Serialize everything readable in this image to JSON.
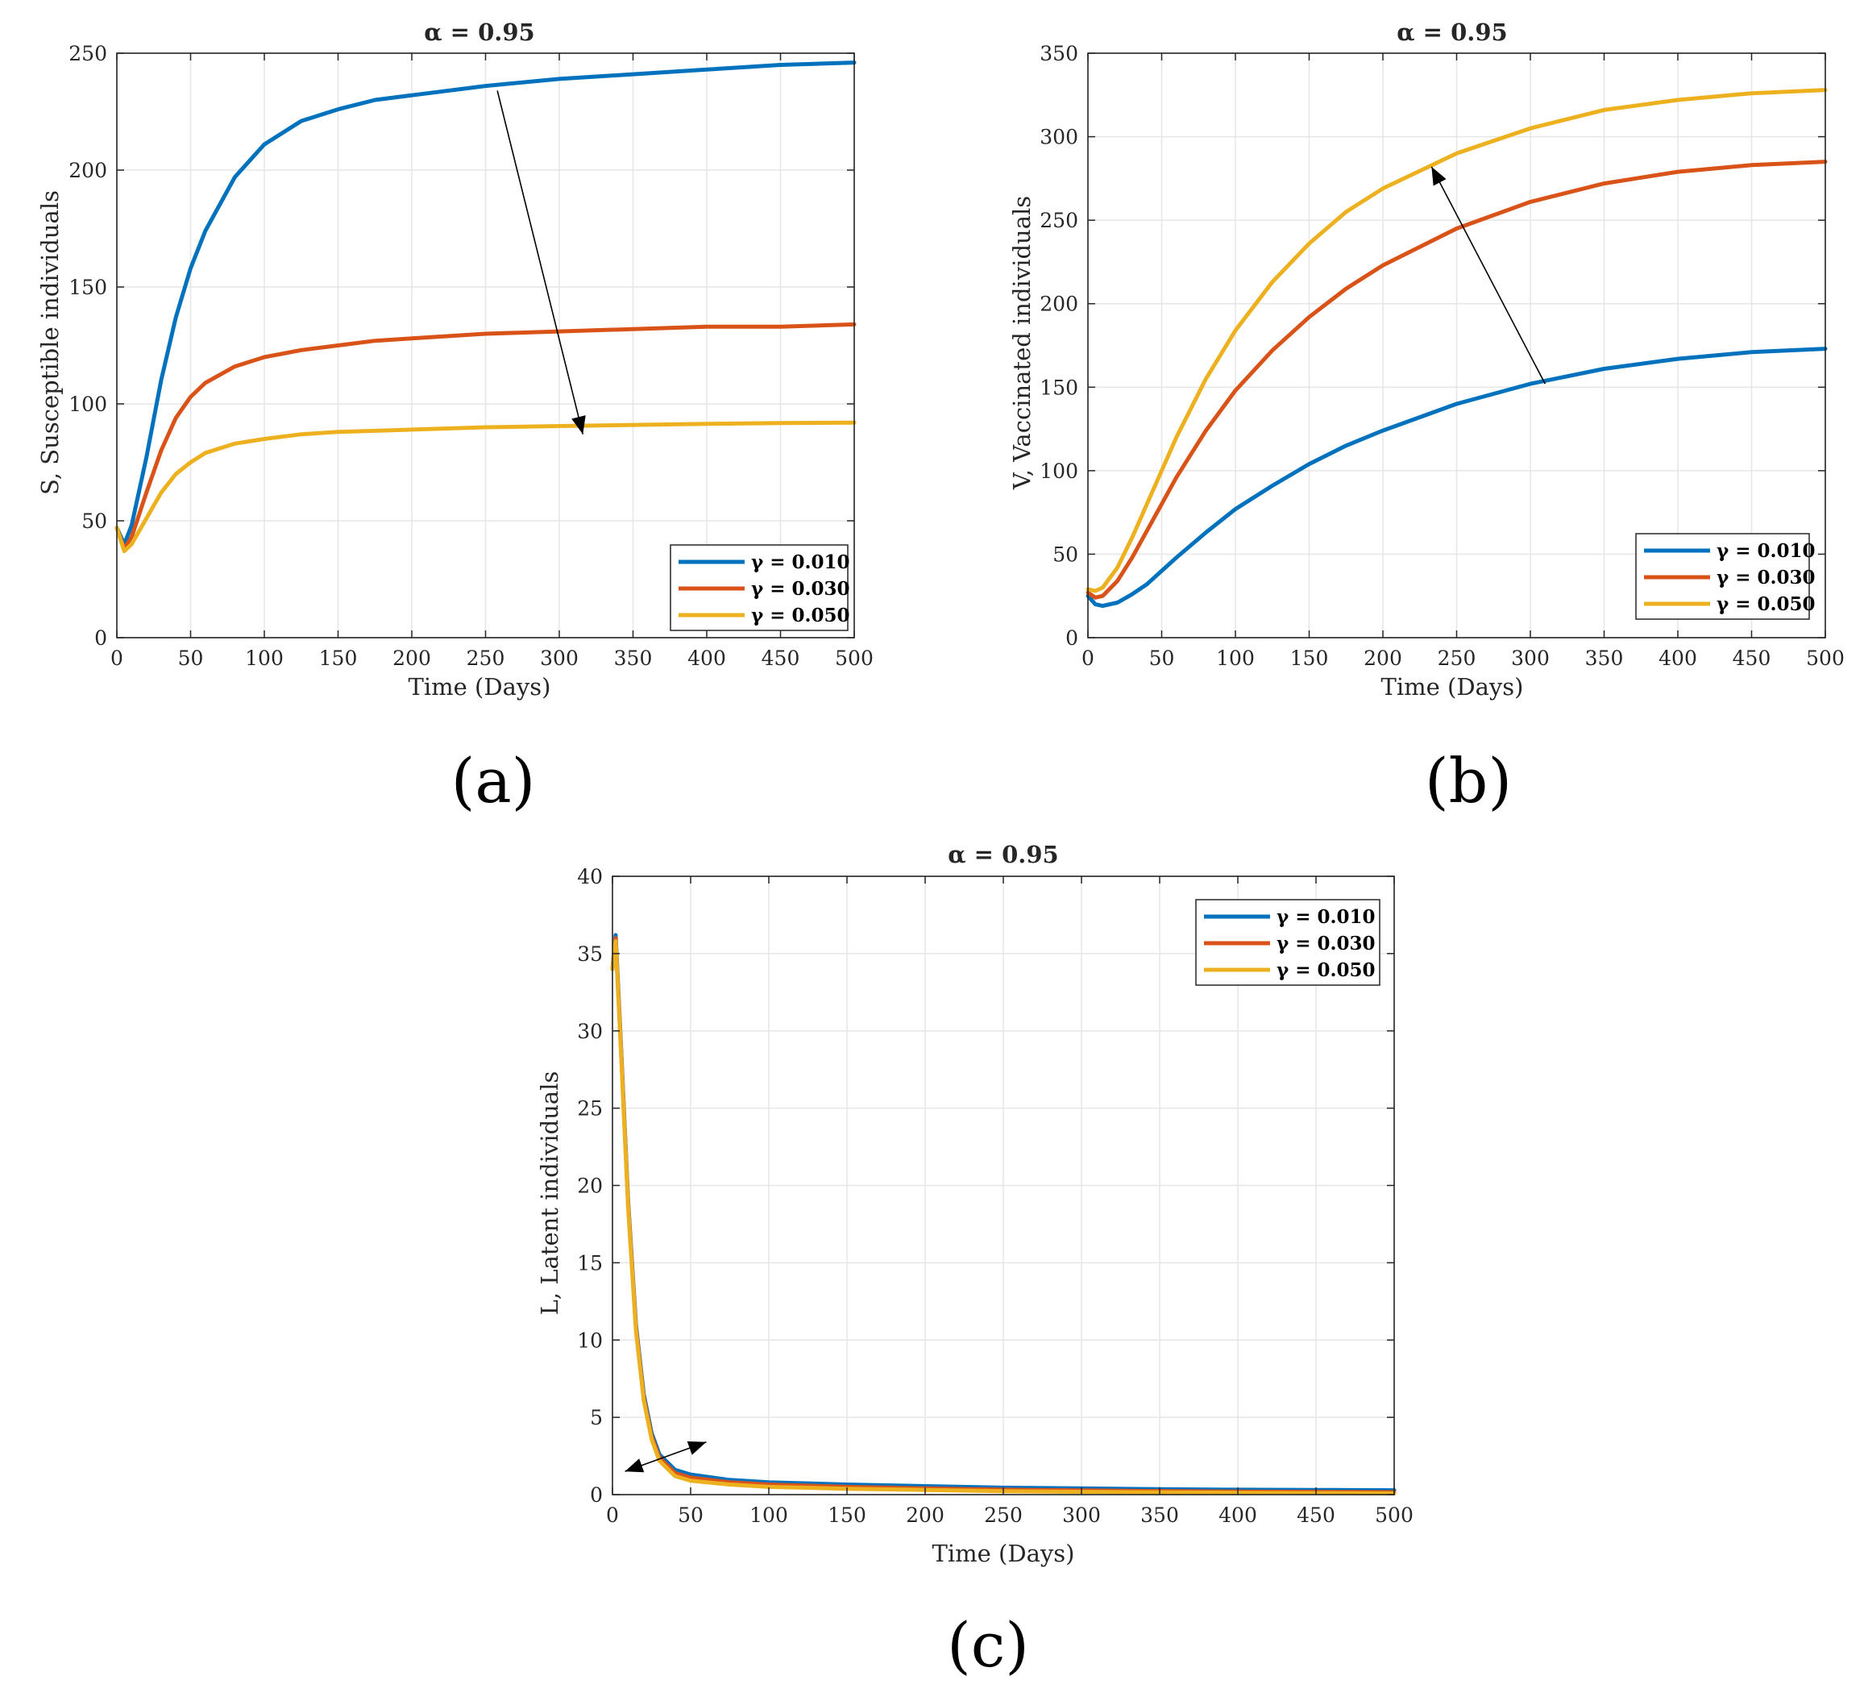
{
  "figure": {
    "panel_labels": [
      "(a)",
      "(b)",
      "(c)"
    ]
  },
  "colors": {
    "series": [
      "#0072BD",
      "#D95319",
      "#EDB120"
    ],
    "axis": "#262626",
    "grid": "#e6e6e6"
  },
  "chart_data": [
    {
      "type": "line",
      "title": "α = 0.95",
      "xlabel": "Time (Days)",
      "ylabel": "S, Susceptible individuals",
      "xlim": [
        0,
        500
      ],
      "ylim": [
        0,
        250
      ],
      "xticks": [
        0,
        50,
        100,
        150,
        200,
        250,
        300,
        350,
        400,
        450,
        500
      ],
      "yticks": [
        0,
        50,
        100,
        150,
        200,
        250
      ],
      "grid": true,
      "legend_position": "bottom-right",
      "annotation": "arrow pointing from γ = 0.010 toward γ = 0.050",
      "x": [
        0,
        5,
        10,
        20,
        30,
        40,
        50,
        60,
        80,
        100,
        125,
        150,
        175,
        200,
        250,
        300,
        350,
        400,
        450,
        500
      ],
      "series": [
        {
          "name": "γ = 0.010",
          "values": [
            47,
            40,
            48,
            77,
            110,
            137,
            158,
            174,
            197,
            211,
            221,
            226,
            230,
            232,
            236,
            239,
            241,
            243,
            245,
            246
          ]
        },
        {
          "name": "γ = 0.030",
          "values": [
            47,
            38,
            43,
            62,
            80,
            94,
            103,
            109,
            116,
            120,
            123,
            125,
            127,
            128,
            130,
            131,
            132,
            133,
            133,
            134
          ]
        },
        {
          "name": "γ = 0.050",
          "values": [
            47,
            37,
            40,
            51,
            62,
            70,
            75,
            79,
            83,
            85,
            87,
            88,
            88.5,
            89,
            90,
            90.5,
            91,
            91.5,
            91.8,
            92
          ]
        }
      ]
    },
    {
      "type": "line",
      "title": "α = 0.95",
      "xlabel": "Time (Days)",
      "ylabel": "V, Vaccinated individuals",
      "xlim": [
        0,
        500
      ],
      "ylim": [
        0,
        350
      ],
      "xticks": [
        0,
        50,
        100,
        150,
        200,
        250,
        300,
        350,
        400,
        450,
        500
      ],
      "yticks": [
        0,
        50,
        100,
        150,
        200,
        250,
        300,
        350
      ],
      "grid": true,
      "legend_position": "bottom-right",
      "annotation": "arrow pointing from γ = 0.010 toward γ = 0.050",
      "x": [
        0,
        5,
        10,
        20,
        30,
        40,
        50,
        60,
        80,
        100,
        125,
        150,
        175,
        200,
        250,
        300,
        350,
        400,
        450,
        500
      ],
      "series": [
        {
          "name": "γ = 0.010",
          "values": [
            25,
            20,
            19,
            21,
            26,
            32,
            40,
            48,
            63,
            77,
            91,
            104,
            115,
            124,
            140,
            152,
            161,
            167,
            171,
            173
          ]
        },
        {
          "name": "γ = 0.030",
          "values": [
            27,
            24,
            25,
            34,
            48,
            64,
            80,
            96,
            124,
            148,
            172,
            192,
            209,
            223,
            245,
            261,
            272,
            279,
            283,
            285
          ]
        },
        {
          "name": "γ = 0.050",
          "values": [
            29,
            28,
            30,
            42,
            60,
            80,
            100,
            120,
            155,
            184,
            213,
            236,
            255,
            269,
            290,
            305,
            316,
            322,
            326,
            328
          ]
        }
      ]
    },
    {
      "type": "line",
      "title": "α = 0.95",
      "xlabel": "Time (Days)",
      "ylabel": "L, Latent individuals",
      "xlim": [
        0,
        500
      ],
      "ylim": [
        0,
        40
      ],
      "xticks": [
        0,
        50,
        100,
        150,
        200,
        250,
        300,
        350,
        400,
        450,
        500
      ],
      "yticks": [
        0,
        5,
        10,
        15,
        20,
        25,
        30,
        35,
        40
      ],
      "grid": true,
      "legend_position": "top-right",
      "annotation": "double-headed arrow near the curve knee",
      "x": [
        0,
        2,
        5,
        10,
        15,
        20,
        25,
        30,
        40,
        50,
        75,
        100,
        150,
        200,
        250,
        300,
        350,
        400,
        450,
        500
      ],
      "series": [
        {
          "name": "γ = 0.010",
          "values": [
            34,
            36.2,
            30,
            19,
            11,
            6.5,
            4,
            2.6,
            1.6,
            1.3,
            0.95,
            0.8,
            0.65,
            0.55,
            0.45,
            0.4,
            0.35,
            0.32,
            0.3,
            0.28
          ]
        },
        {
          "name": "γ = 0.030",
          "values": [
            34,
            36,
            29.8,
            18.8,
            10.8,
            6.3,
            3.8,
            2.4,
            1.4,
            1.1,
            0.8,
            0.65,
            0.5,
            0.4,
            0.32,
            0.27,
            0.23,
            0.2,
            0.18,
            0.16
          ]
        },
        {
          "name": "γ = 0.050",
          "values": [
            34,
            35.8,
            29.6,
            18.6,
            10.6,
            6.1,
            3.6,
            2.2,
            1.2,
            0.9,
            0.65,
            0.5,
            0.38,
            0.3,
            0.22,
            0.18,
            0.15,
            0.12,
            0.1,
            0.08
          ]
        }
      ]
    }
  ]
}
